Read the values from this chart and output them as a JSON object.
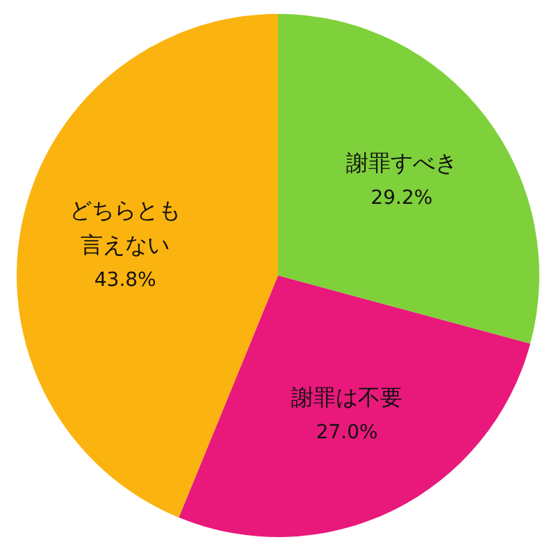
{
  "chart_data": {
    "type": "pie",
    "categories": [
      "謝罪すべき",
      "謝罪は不要",
      "どちらとも言えない"
    ],
    "values": [
      29.2,
      27.0,
      43.8
    ],
    "value_labels": [
      "29.2%",
      "27.0%",
      "43.8%"
    ],
    "colors": [
      "#7fd13b",
      "#e8197b",
      "#fbb30f"
    ]
  }
}
